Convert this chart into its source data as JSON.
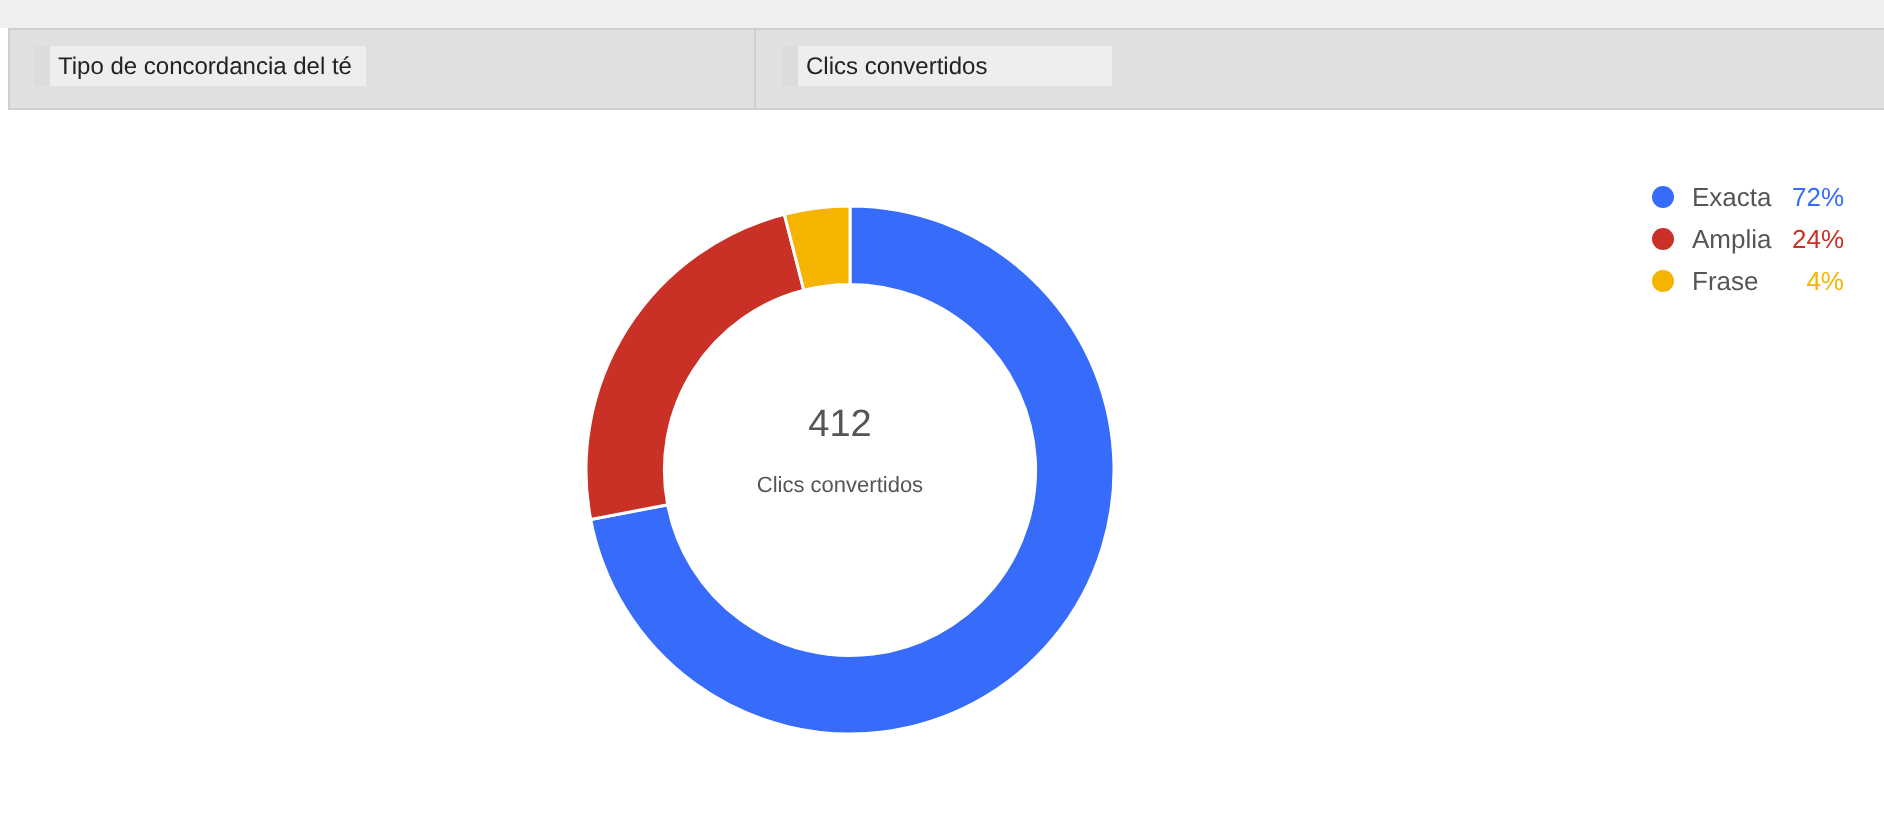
{
  "chart_data": {
    "type": "donut",
    "categories": [
      "Exacta",
      "Amplia",
      "Frase"
    ],
    "values": [
      72,
      24,
      4
    ],
    "colors": [
      "#366cf9",
      "#c93127",
      "#f5b400"
    ],
    "value_labels": [
      "72%",
      "24%",
      "4%"
    ],
    "legend": "top right",
    "annotations": [
      "Tipo de concordancia del té",
      "Clics convertidos",
      "412",
      "Clics convertidos"
    ]
  }
}
